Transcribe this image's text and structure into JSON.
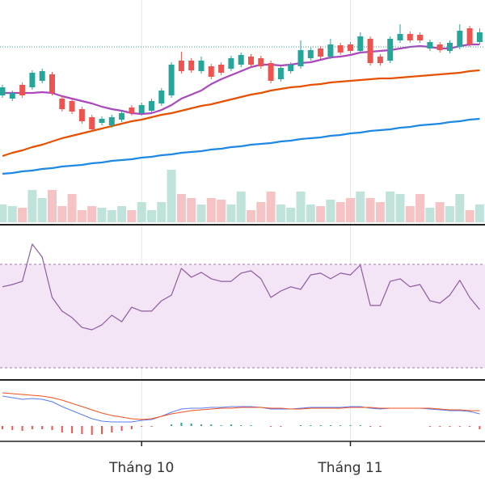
{
  "chart_data": [
    {
      "type": "candlestick",
      "open": [
        88.2,
        87.8,
        89.5,
        89.2,
        90.0,
        90.8,
        87.8,
        87.5,
        86.5,
        85.5,
        84.8,
        84.5,
        85.2,
        86.7,
        86.0,
        86.3,
        87.2,
        88.2,
        92.5,
        92.5,
        91.2,
        91.8,
        92.0,
        91.5,
        92.0,
        93.0,
        92.8,
        92.2,
        90.2,
        91.2,
        91.8,
        92.8,
        94.0,
        93.0,
        94.4,
        94.5,
        93.7,
        95.2,
        93.0,
        92.5,
        95.0,
        95.8,
        95.7,
        94.0,
        94.5,
        93.7,
        94.2,
        96.5,
        94.8
      ],
      "high": [
        89.5,
        88.8,
        89.8,
        91.3,
        91.5,
        91.1,
        88.1,
        87.8,
        86.8,
        85.8,
        85.6,
        85.8,
        86.3,
        87.0,
        87.3,
        87.8,
        89.1,
        92.3,
        93.6,
        92.8,
        93.0,
        92.1,
        92.3,
        93.1,
        93.5,
        93.3,
        93.1,
        92.5,
        91.9,
        92.3,
        95.0,
        94.1,
        94.3,
        95.2,
        94.7,
        94.8,
        96.0,
        95.5,
        93.3,
        95.5,
        97.0,
        96.1,
        96.0,
        95.1,
        94.8,
        95.0,
        97.0,
        96.8,
        96.5
      ],
      "low": [
        87.9,
        87.5,
        87.9,
        88.9,
        89.7,
        88.2,
        86.2,
        85.9,
        84.7,
        83.7,
        84.5,
        84.2,
        84.9,
        85.7,
        85.7,
        86.0,
        86.9,
        87.9,
        90.9,
        91.0,
        90.9,
        90.2,
        90.7,
        91.2,
        91.7,
        91.7,
        91.5,
        89.7,
        89.9,
        90.9,
        91.5,
        92.5,
        92.7,
        92.7,
        93.2,
        93.4,
        93.4,
        91.9,
        91.9,
        92.2,
        94.7,
        94.7,
        94.7,
        93.7,
        93.5,
        93.4,
        93.9,
        94.2,
        94.5
      ],
      "close": [
        89.2,
        88.5,
        88.2,
        91.0,
        91.2,
        88.5,
        86.5,
        86.2,
        85.0,
        84.0,
        85.3,
        85.5,
        86.0,
        86.0,
        87.0,
        87.5,
        88.8,
        92.0,
        91.2,
        91.3,
        92.5,
        90.5,
        91.0,
        92.8,
        93.2,
        92.0,
        91.8,
        90.0,
        91.6,
        92.0,
        93.8,
        93.8,
        93.0,
        94.5,
        93.5,
        93.7,
        95.5,
        92.2,
        92.2,
        95.2,
        95.8,
        95.0,
        95.0,
        94.8,
        93.8,
        94.7,
        96.2,
        94.5,
        96.0
      ],
      "up_color": "#26a69a",
      "down_color": "#ef5350",
      "ylim": [
        78,
        100
      ],
      "price_line": 94.2,
      "price_line_color": "#26a69a",
      "series": [
        {
          "color": "#ab47bc",
          "values": [
            88.5,
            88.5,
            88.5,
            88.5,
            88.6,
            88.5,
            88.1,
            87.8,
            87.5,
            87.2,
            86.8,
            86.5,
            86.3,
            86.0,
            85.9,
            86.0,
            86.4,
            87.0,
            87.8,
            88.3,
            88.8,
            89.6,
            90.2,
            90.7,
            91.2,
            91.7,
            92.0,
            92.0,
            91.9,
            92.0,
            92.2,
            92.3,
            92.6,
            92.9,
            93.0,
            93.2,
            93.5,
            93.6,
            93.7,
            93.8,
            94.0,
            94.2,
            94.3,
            94.2,
            94.0,
            94.0,
            94.3,
            94.5,
            94.5
          ]
        },
        {
          "color": "#e65100",
          "values": [
            80.7,
            81.1,
            81.4,
            81.8,
            82.1,
            82.5,
            82.9,
            83.2,
            83.5,
            83.8,
            84.1,
            84.4,
            84.7,
            85.0,
            85.2,
            85.5,
            85.8,
            86.0,
            86.3,
            86.6,
            86.9,
            87.1,
            87.4,
            87.7,
            88.0,
            88.3,
            88.5,
            88.8,
            89.0,
            89.2,
            89.3,
            89.5,
            89.6,
            89.8,
            89.9,
            90.0,
            90.1,
            90.2,
            90.3,
            90.3,
            90.4,
            90.5,
            90.6,
            90.7,
            90.8,
            90.9,
            91.0,
            91.2,
            91.3
          ]
        },
        {
          "color": "#1e88e5",
          "values": [
            78.5,
            78.6,
            78.8,
            78.9,
            79.1,
            79.2,
            79.4,
            79.5,
            79.6,
            79.8,
            79.9,
            80.1,
            80.2,
            80.3,
            80.5,
            80.6,
            80.8,
            80.9,
            81.1,
            81.2,
            81.3,
            81.5,
            81.6,
            81.8,
            81.9,
            82.1,
            82.2,
            82.3,
            82.5,
            82.6,
            82.8,
            82.9,
            83.0,
            83.2,
            83.3,
            83.5,
            83.6,
            83.8,
            83.9,
            84.0,
            84.2,
            84.3,
            84.5,
            84.6,
            84.7,
            84.9,
            85.0,
            85.2,
            85.3
          ]
        }
      ]
    },
    {
      "type": "bar",
      "values": [
        22,
        20,
        18,
        40,
        30,
        40,
        20,
        35,
        15,
        20,
        18,
        15,
        20,
        15,
        25,
        15,
        25,
        65,
        35,
        30,
        22,
        30,
        28,
        22,
        38,
        15,
        25,
        38,
        22,
        18,
        38,
        22,
        20,
        28,
        25,
        30,
        38,
        30,
        25,
        38,
        35,
        20,
        35,
        18,
        25,
        20,
        35,
        15,
        22
      ],
      "up_color": "#bfe3da",
      "down_color": "#f6c3c5",
      "ylim": [
        0,
        100
      ]
    },
    {
      "type": "line",
      "values": [
        61.3,
        62.2,
        63.4,
        77.8,
        72.8,
        57.2,
        51.9,
        49.4,
        45.6,
        44.7,
        46.6,
        50.3,
        47.8,
        53.4,
        51.9,
        51.9,
        55.9,
        58.1,
        68.4,
        65.0,
        66.9,
        64.4,
        63.4,
        63.4,
        66.6,
        67.5,
        64.4,
        57.2,
        59.7,
        61.3,
        60.3,
        65.9,
        66.6,
        64.4,
        66.6,
        65.9,
        69.7,
        54.1,
        54.1,
        63.4,
        64.4,
        61.3,
        62.2,
        55.9,
        55.0,
        58.1,
        63.8,
        57.2,
        52.5
      ],
      "color": "#8e5ba0",
      "ylim": [
        0,
        100
      ],
      "band": [
        30,
        70
      ],
      "band_color": "#f3e5f5"
    },
    {
      "type": "macd",
      "categories": [
        null,
        null,
        null,
        null,
        null,
        null,
        null,
        null,
        null,
        null,
        null,
        null,
        null,
        null,
        "Tháng 10",
        null,
        null,
        null,
        null,
        null,
        null,
        null,
        null,
        null,
        null,
        null,
        null,
        null,
        null,
        null,
        null,
        null,
        null,
        null,
        null,
        "Tháng 11",
        null,
        null,
        null,
        null,
        null,
        null,
        null,
        null,
        null,
        null,
        null,
        null,
        null
      ],
      "grid": true,
      "ylim": [
        -1,
        2.5
      ],
      "series": [
        {
          "color": "#5b7cfa",
          "values": [
            1.75,
            1.65,
            1.55,
            1.6,
            1.55,
            1.4,
            1.1,
            0.85,
            0.6,
            0.35,
            0.2,
            0.15,
            0.15,
            0.15,
            0.25,
            0.3,
            0.5,
            0.75,
            0.95,
            1.0,
            1.0,
            1.05,
            1.05,
            1.1,
            1.1,
            1.1,
            1.05,
            0.95,
            0.95,
            0.95,
            1.0,
            1.05,
            1.05,
            1.05,
            1.05,
            1.1,
            1.1,
            1.0,
            0.95,
            1.0,
            1.0,
            1.0,
            1.0,
            0.95,
            0.9,
            0.85,
            0.85,
            0.8,
            0.65
          ]
        },
        {
          "color": "#f4511e",
          "values": [
            1.95,
            1.9,
            1.85,
            1.8,
            1.75,
            1.65,
            1.5,
            1.3,
            1.1,
            0.9,
            0.7,
            0.55,
            0.45,
            0.35,
            0.3,
            0.35,
            0.5,
            0.65,
            0.75,
            0.85,
            0.9,
            0.95,
            1.0,
            1.0,
            1.05,
            1.05,
            1.05,
            1.0,
            1.0,
            0.95,
            0.95,
            1.0,
            1.0,
            1.0,
            1.0,
            1.05,
            1.05,
            1.05,
            1.0,
            1.0,
            1.0,
            1.0,
            1.0,
            1.0,
            0.95,
            0.9,
            0.9,
            0.85,
            0.85
          ]
        }
      ],
      "histogram": {
        "values": [
          -0.2,
          -0.25,
          -0.3,
          -0.2,
          -0.2,
          -0.25,
          -0.4,
          -0.45,
          -0.5,
          -0.55,
          -0.5,
          -0.4,
          -0.3,
          -0.2,
          -0.05,
          -0.05,
          0,
          0.1,
          0.2,
          0.15,
          0.1,
          0.1,
          0.05,
          0.1,
          0.05,
          0.05,
          0,
          -0.05,
          -0.05,
          0,
          0.05,
          0.05,
          0.05,
          0.05,
          0.05,
          0.05,
          0.05,
          -0.05,
          -0.05,
          0,
          0,
          0,
          0,
          -0.05,
          -0.05,
          -0.05,
          -0.05,
          -0.05,
          -0.2
        ],
        "up_color": "#26a69a",
        "down_color": "#ef5350"
      }
    }
  ]
}
